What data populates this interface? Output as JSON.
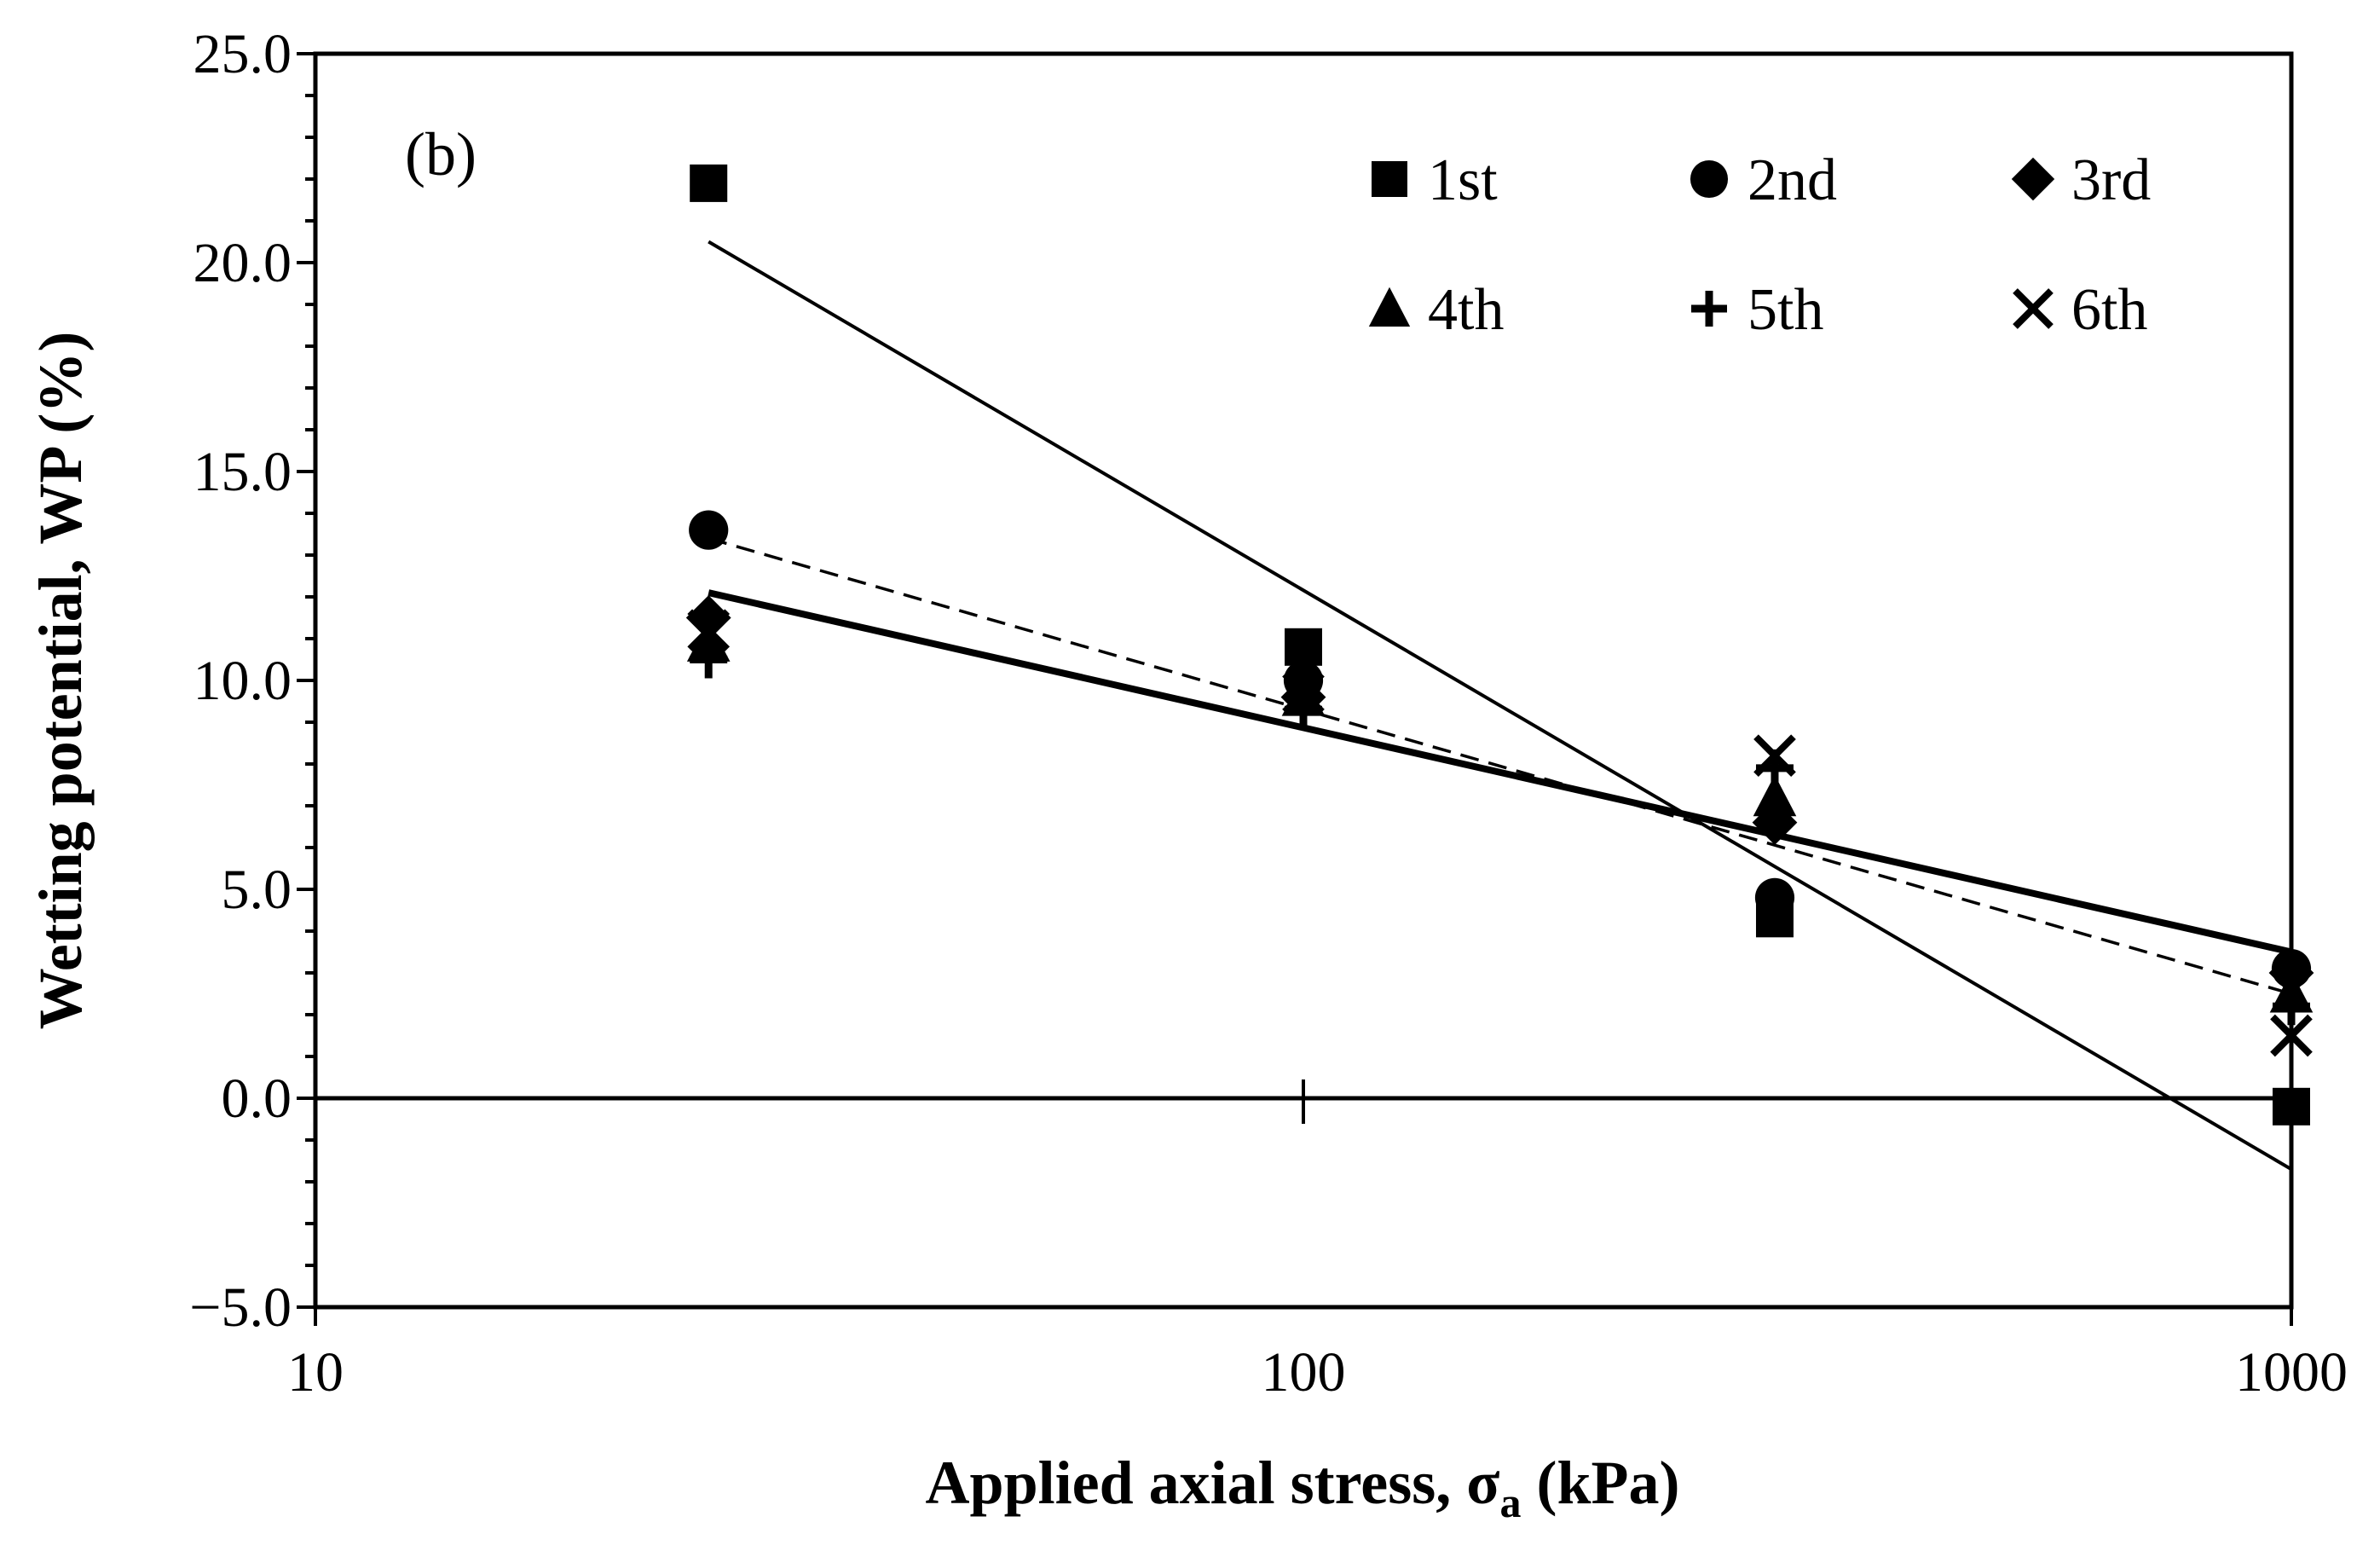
{
  "chart_data": {
    "type": "scatter",
    "panel_label": "(b)",
    "title": "",
    "xlabel_main": "Applied axial stress, ",
    "xlabel_symbol": "σ",
    "xlabel_subscript": "a",
    "xlabel_unit": " (kPa)",
    "ylabel": "Wetting potential, WP (%)",
    "xscale": "log",
    "xlim": [
      10,
      1000
    ],
    "ylim": [
      -5.0,
      25.0
    ],
    "x_ticks": [
      10,
      100,
      1000
    ],
    "x_tick_labels": [
      "10",
      "100",
      "1000"
    ],
    "y_ticks": [
      25.0,
      20.0,
      15.0,
      10.0,
      5.0,
      0.0,
      -5.0
    ],
    "y_tick_labels": [
      "25.0",
      "20.0",
      "15.0",
      "10.0",
      "5.0",
      "0.0",
      "−5.0"
    ],
    "grid": false,
    "legend_position": "top-right",
    "series": [
      {
        "name": "1st",
        "marker": "square",
        "x": [
          25,
          100,
          300,
          1000
        ],
        "y": [
          21.9,
          10.8,
          4.3,
          -0.2
        ]
      },
      {
        "name": "2nd",
        "marker": "circle",
        "x": [
          25,
          100,
          300,
          1000
        ],
        "y": [
          13.6,
          10.0,
          4.8,
          3.1
        ]
      },
      {
        "name": "3rd",
        "marker": "diamond",
        "x": [
          25,
          100,
          300,
          1000
        ],
        "y": [
          11.5,
          9.6,
          6.6,
          3.0
        ]
      },
      {
        "name": "4th",
        "marker": "triangle",
        "x": [
          25,
          100,
          300,
          1000
        ],
        "y": [
          10.9,
          9.6,
          7.2,
          2.5
        ]
      },
      {
        "name": "5th",
        "marker": "plus",
        "x": [
          25,
          100,
          300,
          1000
        ],
        "y": [
          10.5,
          9.3,
          7.9,
          2.2
        ]
      },
      {
        "name": "6th",
        "marker": "cross",
        "x": [
          25,
          100,
          300,
          1000
        ],
        "y": [
          11.2,
          9.7,
          8.2,
          1.5
        ]
      }
    ],
    "trend_lines": [
      {
        "name": "1st trend",
        "style": "thin-solid",
        "x": [
          25,
          1000
        ],
        "y": [
          20.5,
          -1.7
        ]
      },
      {
        "name": "2nd trend",
        "style": "dashed",
        "x": [
          25,
          1000
        ],
        "y": [
          13.4,
          2.5
        ]
      },
      {
        "name": "all trend",
        "style": "thick-solid",
        "x": [
          25,
          1000
        ],
        "y": [
          12.1,
          3.5
        ]
      }
    ]
  },
  "colors": {
    "background": "#ffffff",
    "ink": "#000000"
  }
}
